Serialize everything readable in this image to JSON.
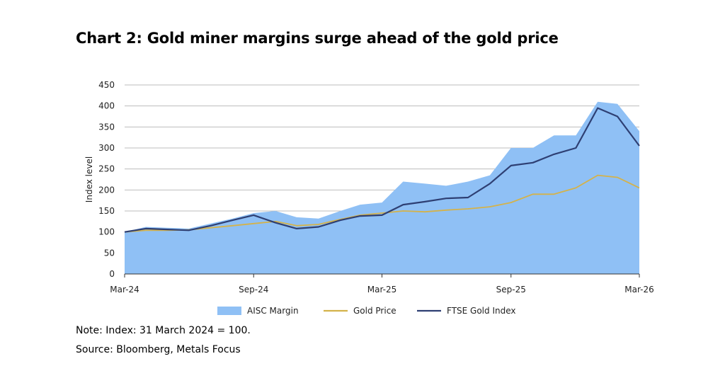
{
  "header": {
    "title": "Chart 2: Gold miner margins surge ahead of the gold price"
  },
  "footer": {
    "note": "Note: Index: 31 March 2024 = 100.",
    "source": "Source: Bloomberg, Metals Focus"
  },
  "chart_data": {
    "type": "line",
    "title": "Chart 2: Gold miner margins surge ahead of the gold price",
    "xlabel": "",
    "ylabel": "Index level",
    "ylim": [
      0,
      450
    ],
    "yticks": [
      0,
      50,
      100,
      150,
      200,
      250,
      300,
      350,
      400,
      450
    ],
    "xlim": [
      "2024-03-31",
      "2026-03-31"
    ],
    "xticks": [
      {
        "date": "2024-03-31",
        "label": "Mar-24"
      },
      {
        "date": "2024-09-30",
        "label": "Sep-24"
      },
      {
        "date": "2025-03-31",
        "label": "Mar-25"
      },
      {
        "date": "2025-09-30",
        "label": "Sep-25"
      },
      {
        "date": "2026-03-31",
        "label": "Mar-26"
      }
    ],
    "grid": true,
    "legend_position": "bottom",
    "x": [
      "2024-03-31",
      "2024-04-30",
      "2024-05-31",
      "2024-06-30",
      "2024-07-31",
      "2024-08-31",
      "2024-09-30",
      "2024-10-31",
      "2024-11-30",
      "2024-12-31",
      "2025-01-31",
      "2025-02-28",
      "2025-03-31",
      "2025-04-30",
      "2025-05-31",
      "2025-06-30",
      "2025-07-31",
      "2025-08-31",
      "2025-09-30",
      "2025-10-31",
      "2025-11-30",
      "2025-12-31",
      "2026-01-31",
      "2026-02-28",
      "2026-03-31"
    ],
    "series": [
      {
        "name": "AISC Margin",
        "style": "area",
        "color": "#8fc0f5",
        "values": [
          100,
          112,
          110,
          108,
          120,
          132,
          145,
          150,
          135,
          132,
          150,
          165,
          170,
          220,
          215,
          210,
          220,
          235,
          300,
          300,
          330,
          330,
          410,
          405,
          340
        ]
      },
      {
        "name": "Gold Price",
        "style": "line",
        "color": "#d4b24a",
        "values": [
          100,
          104,
          104,
          105,
          110,
          115,
          120,
          125,
          115,
          118,
          130,
          140,
          145,
          150,
          148,
          152,
          155,
          160,
          170,
          190,
          190,
          205,
          235,
          230,
          205
        ]
      },
      {
        "name": "FTSE Gold Index",
        "style": "line",
        "color": "#2e3f73",
        "values": [
          100,
          108,
          106,
          104,
          115,
          128,
          140,
          122,
          108,
          112,
          128,
          138,
          140,
          165,
          172,
          180,
          182,
          215,
          258,
          265,
          285,
          300,
          395,
          375,
          305
        ]
      }
    ]
  }
}
